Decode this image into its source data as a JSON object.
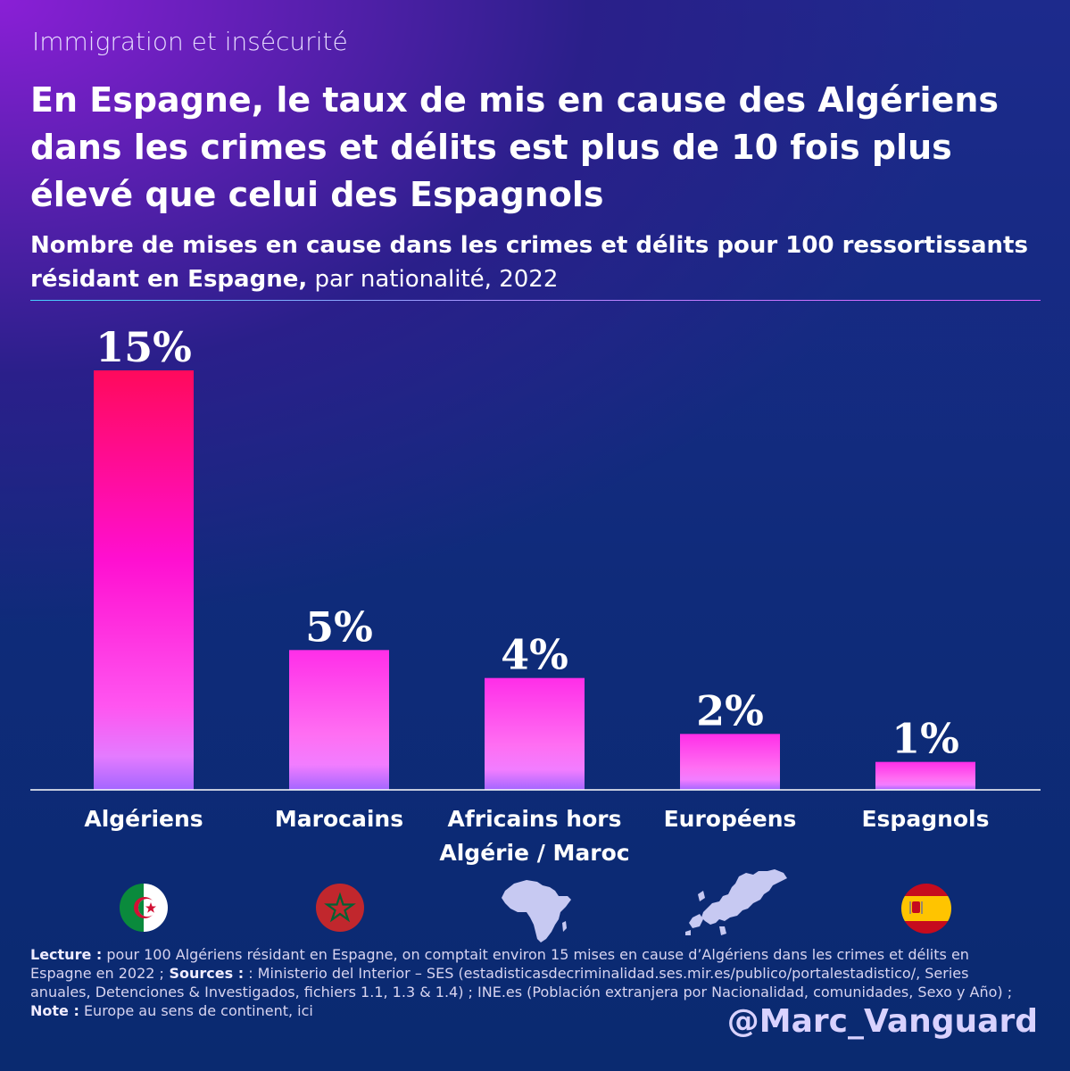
{
  "kicker": "Immigration et insécurité",
  "title": "En Espagne, le taux de mis en cause des Algériens dans les crimes et délits est plus de 10 fois plus élevé que celui des Espagnols",
  "subtitle_bold": "Nombre de mises en cause dans les crimes et délits pour 100 ressortissants résidant en Espagne,",
  "subtitle_normal": " par nationalité, 2022",
  "chart_data": {
    "type": "bar",
    "title": "Nombre de mises en cause dans les crimes et délits pour 100 ressortissants résidant en Espagne, par nationalité, 2022",
    "categories": [
      "Algériens",
      "Marocains",
      "Africains hors Algérie / Maroc",
      "Européens",
      "Espagnols"
    ],
    "category_lines": [
      [
        "Algériens"
      ],
      [
        "Marocains"
      ],
      [
        "Africains hors",
        "Algérie / Maroc"
      ],
      [
        "Européens"
      ],
      [
        "Espagnols"
      ]
    ],
    "values": [
      15,
      5,
      4,
      2,
      1
    ],
    "value_labels": [
      "15%",
      "5%",
      "4%",
      "2%",
      "1%"
    ],
    "unit": "%",
    "ylim": [
      0,
      15
    ],
    "grid": false,
    "colors": {
      "top_bar": "#ff0a5c",
      "bar": "#ff2fe8",
      "bar_base": "#b66bff"
    }
  },
  "icons": [
    "algeria-flag-icon",
    "morocco-flag-icon",
    "africa-map-icon",
    "europe-map-icon",
    "spain-flag-icon"
  ],
  "footnote": {
    "lecture_label": "Lecture :",
    "lecture_text": " pour 100 Algériens résidant en Espagne, on comptait environ 15 mises en cause d’Algériens dans les crimes et délits en Espagne en 2022 ;",
    "sources_label": " Sources :",
    "sources_text": " : Ministerio del Interior – SES (estadisticasdecriminalidad.ses.mir.es/publico/portalestadistico/, Series anuales, Detenciones & Investigados, fichiers 1.1, 1.3 & 1.4) ; INE.es (Población extranjera por Nacionalidad, comunidades, Sexo y Año) ;",
    "note_label": " Note :",
    "note_text": " Europe au sens de continent, ici"
  },
  "handle": "@Marc_Vanguard"
}
